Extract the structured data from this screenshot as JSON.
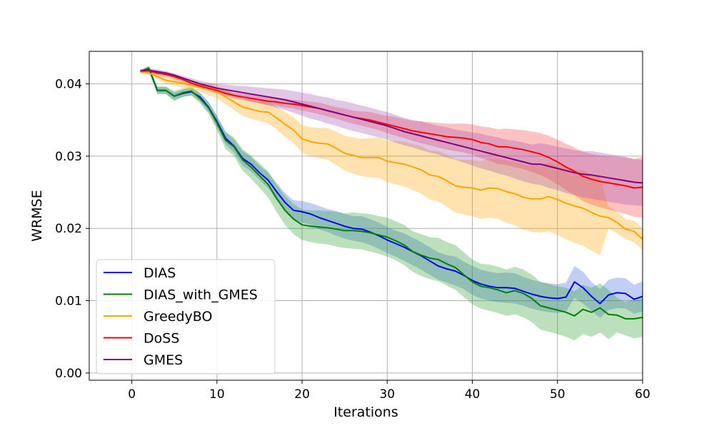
{
  "chart_data": {
    "type": "line",
    "title": "",
    "xlabel": "Iterations",
    "ylabel": "WRMSE",
    "xlim": [
      -5,
      60
    ],
    "ylim": [
      -0.001,
      0.0445
    ],
    "x_ticks": [
      0,
      10,
      20,
      30,
      40,
      50,
      60
    ],
    "x_tick_labels": [
      "0",
      "10",
      "20",
      "30",
      "40",
      "50",
      "60"
    ],
    "y_ticks": [
      0.0,
      0.01,
      0.02,
      0.03,
      0.04
    ],
    "y_tick_labels": [
      "0.00",
      "0.01",
      "0.02",
      "0.03",
      "0.04"
    ],
    "grid": true,
    "legend_position": "lower-left",
    "x": [
      1,
      2,
      3,
      4,
      5,
      6,
      7,
      8,
      9,
      10,
      11,
      12,
      13,
      14,
      15,
      16,
      17,
      18,
      19,
      20,
      21,
      22,
      23,
      24,
      25,
      26,
      27,
      28,
      29,
      30,
      31,
      32,
      33,
      34,
      35,
      36,
      37,
      38,
      39,
      40,
      41,
      42,
      43,
      44,
      45,
      46,
      47,
      48,
      49,
      50,
      51,
      52,
      53,
      54,
      55,
      56,
      57,
      58,
      59,
      60
    ],
    "series": [
      {
        "name": "DIAS",
        "color": "#0000ff",
        "band_color": "#4169e1",
        "values": [
          0.0417,
          0.0421,
          0.0391,
          0.0391,
          0.0383,
          0.0387,
          0.0389,
          0.0382,
          0.0368,
          0.0348,
          0.0325,
          0.0314,
          0.0297,
          0.0289,
          0.0277,
          0.0267,
          0.0251,
          0.0236,
          0.0225,
          0.0223,
          0.022,
          0.0215,
          0.0211,
          0.0207,
          0.0203,
          0.02,
          0.0199,
          0.0195,
          0.019,
          0.0184,
          0.0179,
          0.0174,
          0.0168,
          0.0162,
          0.0155,
          0.0148,
          0.0144,
          0.0141,
          0.0135,
          0.0128,
          0.0123,
          0.012,
          0.0118,
          0.0118,
          0.0117,
          0.0113,
          0.0109,
          0.0106,
          0.0104,
          0.0103,
          0.0105,
          0.0126,
          0.0118,
          0.0106,
          0.0096,
          0.0108,
          0.0111,
          0.011,
          0.0102,
          0.0106
        ],
        "lower": [
          0.0415,
          0.0418,
          0.0386,
          0.0386,
          0.0378,
          0.0382,
          0.0384,
          0.0376,
          0.0361,
          0.034,
          0.0316,
          0.0305,
          0.0287,
          0.0279,
          0.0267,
          0.0256,
          0.0239,
          0.0223,
          0.0211,
          0.0208,
          0.0205,
          0.0199,
          0.0195,
          0.019,
          0.0186,
          0.0183,
          0.0181,
          0.0177,
          0.0172,
          0.0166,
          0.0161,
          0.0155,
          0.0149,
          0.0143,
          0.0136,
          0.0129,
          0.0125,
          0.0121,
          0.0116,
          0.0108,
          0.0103,
          0.01,
          0.0098,
          0.0097,
          0.0096,
          0.0093,
          0.0089,
          0.0086,
          0.0084,
          0.0083,
          0.0085,
          0.0104,
          0.0096,
          0.0086,
          0.0076,
          0.0087,
          0.009,
          0.0089,
          0.0082,
          0.0085
        ],
        "upper": [
          0.0419,
          0.0424,
          0.0396,
          0.0396,
          0.0388,
          0.0392,
          0.0394,
          0.0388,
          0.0375,
          0.0356,
          0.0334,
          0.0323,
          0.0307,
          0.0299,
          0.0287,
          0.0278,
          0.0263,
          0.0249,
          0.0239,
          0.0238,
          0.0235,
          0.0231,
          0.0227,
          0.0224,
          0.022,
          0.0217,
          0.0217,
          0.0213,
          0.0208,
          0.0202,
          0.0197,
          0.0193,
          0.0187,
          0.0181,
          0.0174,
          0.0167,
          0.0163,
          0.0161,
          0.0154,
          0.0148,
          0.0143,
          0.014,
          0.0138,
          0.0139,
          0.0138,
          0.0133,
          0.0129,
          0.0126,
          0.0124,
          0.0123,
          0.0125,
          0.0148,
          0.014,
          0.0126,
          0.0116,
          0.0129,
          0.0132,
          0.0131,
          0.0122,
          0.0127
        ]
      },
      {
        "name": "DIAS_with_GMES",
        "color": "#008000",
        "band_color": "#2ca02c",
        "values": [
          0.0417,
          0.0422,
          0.0391,
          0.0391,
          0.0383,
          0.0388,
          0.039,
          0.038,
          0.0367,
          0.0346,
          0.0322,
          0.0313,
          0.0295,
          0.0285,
          0.0273,
          0.0261,
          0.0242,
          0.0225,
          0.0213,
          0.0205,
          0.0203,
          0.0202,
          0.0201,
          0.0199,
          0.0197,
          0.0197,
          0.0196,
          0.0194,
          0.0191,
          0.0188,
          0.0183,
          0.0177,
          0.0168,
          0.0163,
          0.0159,
          0.0157,
          0.0151,
          0.0146,
          0.0136,
          0.0126,
          0.012,
          0.0118,
          0.0115,
          0.0111,
          0.0114,
          0.011,
          0.0103,
          0.0093,
          0.009,
          0.0087,
          0.0084,
          0.0079,
          0.0088,
          0.0084,
          0.009,
          0.0081,
          0.008,
          0.0075,
          0.0075,
          0.0077
        ],
        "lower": [
          0.0415,
          0.0419,
          0.0386,
          0.0386,
          0.0376,
          0.0382,
          0.0384,
          0.0373,
          0.0359,
          0.0336,
          0.031,
          0.03,
          0.028,
          0.0269,
          0.0256,
          0.0243,
          0.0223,
          0.0205,
          0.0192,
          0.0184,
          0.0181,
          0.0179,
          0.0178,
          0.0175,
          0.0173,
          0.0172,
          0.0171,
          0.0168,
          0.0165,
          0.0161,
          0.0156,
          0.0149,
          0.014,
          0.0134,
          0.013,
          0.0127,
          0.0121,
          0.0115,
          0.0105,
          0.0095,
          0.0089,
          0.0086,
          0.0083,
          0.0079,
          0.0081,
          0.0077,
          0.007,
          0.006,
          0.0057,
          0.0054,
          0.005,
          0.0045,
          0.0054,
          0.005,
          0.0056,
          0.0047,
          0.0056,
          0.0052,
          0.0048,
          0.005
        ],
        "upper": [
          0.0419,
          0.0425,
          0.0396,
          0.0396,
          0.039,
          0.0394,
          0.0396,
          0.0387,
          0.0375,
          0.0356,
          0.0334,
          0.0326,
          0.031,
          0.0301,
          0.029,
          0.0279,
          0.0261,
          0.0245,
          0.0234,
          0.0226,
          0.0225,
          0.0225,
          0.0224,
          0.0223,
          0.0221,
          0.0222,
          0.0221,
          0.022,
          0.0217,
          0.0215,
          0.021,
          0.0205,
          0.0196,
          0.0192,
          0.0188,
          0.0187,
          0.0181,
          0.0177,
          0.0167,
          0.0157,
          0.0151,
          0.015,
          0.0147,
          0.0143,
          0.0147,
          0.0143,
          0.0136,
          0.0126,
          0.0123,
          0.012,
          0.0118,
          0.0113,
          0.0122,
          0.0118,
          0.0124,
          0.0115,
          0.0104,
          0.0098,
          0.0102,
          0.0104
        ]
      },
      {
        "name": "GreedyBO",
        "color": "#ffa500",
        "band_color": "#ffa500",
        "values": [
          0.0417,
          0.0415,
          0.041,
          0.0405,
          0.0403,
          0.0401,
          0.0398,
          0.0396,
          0.0393,
          0.0389,
          0.0382,
          0.0375,
          0.0368,
          0.0365,
          0.0362,
          0.0361,
          0.0353,
          0.0344,
          0.0336,
          0.0324,
          0.032,
          0.0318,
          0.0317,
          0.0311,
          0.0304,
          0.0301,
          0.0298,
          0.0298,
          0.0298,
          0.0293,
          0.0291,
          0.0289,
          0.0285,
          0.0281,
          0.0274,
          0.0272,
          0.0266,
          0.0259,
          0.0257,
          0.0256,
          0.0253,
          0.0256,
          0.0255,
          0.0251,
          0.0248,
          0.0243,
          0.0241,
          0.0241,
          0.0244,
          0.024,
          0.0235,
          0.0231,
          0.0228,
          0.0222,
          0.0217,
          0.0215,
          0.0208,
          0.0199,
          0.0196,
          0.0185
        ],
        "lower": [
          0.0414,
          0.0412,
          0.0406,
          0.04,
          0.0398,
          0.0395,
          0.0391,
          0.0389,
          0.0385,
          0.038,
          0.0372,
          0.0364,
          0.0356,
          0.0352,
          0.0348,
          0.0346,
          0.0337,
          0.0327,
          0.0318,
          0.0305,
          0.03,
          0.0297,
          0.0295,
          0.0288,
          0.028,
          0.0276,
          0.0272,
          0.0271,
          0.027,
          0.0264,
          0.0261,
          0.0258,
          0.0253,
          0.0248,
          0.024,
          0.0237,
          0.023,
          0.0222,
          0.0219,
          0.0217,
          0.0213,
          0.0215,
          0.0213,
          0.0208,
          0.0204,
          0.0198,
          0.0195,
          0.0194,
          0.0196,
          0.0191,
          0.0185,
          0.018,
          0.0176,
          0.0169,
          0.0163,
          0.02,
          0.0193,
          0.0185,
          0.0181,
          0.017
        ],
        "upper": [
          0.042,
          0.0418,
          0.0414,
          0.041,
          0.0408,
          0.0407,
          0.0405,
          0.0403,
          0.0401,
          0.0398,
          0.0392,
          0.0386,
          0.038,
          0.0378,
          0.0376,
          0.0376,
          0.0369,
          0.0361,
          0.0354,
          0.0343,
          0.034,
          0.0339,
          0.0339,
          0.0334,
          0.0328,
          0.0326,
          0.0324,
          0.0325,
          0.0326,
          0.0322,
          0.0321,
          0.032,
          0.0317,
          0.0314,
          0.0308,
          0.0307,
          0.0302,
          0.0296,
          0.0295,
          0.0295,
          0.0293,
          0.0297,
          0.0297,
          0.0294,
          0.0292,
          0.0288,
          0.0287,
          0.0288,
          0.0292,
          0.0289,
          0.0285,
          0.0282,
          0.028,
          0.0275,
          0.0271,
          0.023,
          0.0223,
          0.0213,
          0.0211,
          0.02
        ]
      },
      {
        "name": "DoSS",
        "color": "#ff0000",
        "band_color": "#ff4040",
        "values": [
          0.0418,
          0.0418,
          0.0415,
          0.0413,
          0.041,
          0.0406,
          0.0401,
          0.0397,
          0.0394,
          0.0391,
          0.0387,
          0.0384,
          0.0382,
          0.038,
          0.0378,
          0.0376,
          0.0375,
          0.0373,
          0.0372,
          0.037,
          0.0368,
          0.0366,
          0.0363,
          0.036,
          0.0357,
          0.0354,
          0.0352,
          0.035,
          0.0347,
          0.0344,
          0.0341,
          0.0338,
          0.0335,
          0.0333,
          0.0331,
          0.0329,
          0.0327,
          0.0326,
          0.0325,
          0.0323,
          0.0319,
          0.0317,
          0.0313,
          0.0313,
          0.0311,
          0.0309,
          0.0306,
          0.0303,
          0.0298,
          0.0292,
          0.0285,
          0.0279,
          0.0272,
          0.0268,
          0.0265,
          0.0263,
          0.0261,
          0.0259,
          0.0256,
          0.0257
        ],
        "lower": [
          0.0416,
          0.0416,
          0.0412,
          0.041,
          0.0407,
          0.0403,
          0.0398,
          0.0394,
          0.039,
          0.0387,
          0.0383,
          0.038,
          0.0378,
          0.0375,
          0.0373,
          0.0371,
          0.037,
          0.0367,
          0.0366,
          0.0363,
          0.0361,
          0.0358,
          0.0355,
          0.0352,
          0.0348,
          0.0345,
          0.0342,
          0.0339,
          0.0336,
          0.0332,
          0.0328,
          0.0325,
          0.0321,
          0.0318,
          0.0315,
          0.0312,
          0.0309,
          0.0307,
          0.0305,
          0.0302,
          0.0297,
          0.0294,
          0.0289,
          0.0288,
          0.0285,
          0.0282,
          0.0278,
          0.0274,
          0.0268,
          0.0261,
          0.0253,
          0.0246,
          0.0238,
          0.0233,
          0.0229,
          0.0226,
          0.0223,
          0.022,
          0.0216,
          0.0215
        ],
        "upper": [
          0.042,
          0.042,
          0.0418,
          0.0416,
          0.0413,
          0.0409,
          0.0404,
          0.04,
          0.0398,
          0.0395,
          0.0391,
          0.0388,
          0.0386,
          0.0385,
          0.0383,
          0.0381,
          0.038,
          0.0379,
          0.0378,
          0.0377,
          0.0375,
          0.0374,
          0.0371,
          0.0368,
          0.0366,
          0.0363,
          0.0362,
          0.0361,
          0.0358,
          0.0356,
          0.0354,
          0.0351,
          0.0349,
          0.0348,
          0.0347,
          0.0346,
          0.0345,
          0.0345,
          0.0345,
          0.0344,
          0.0341,
          0.034,
          0.0337,
          0.0338,
          0.0337,
          0.0336,
          0.0334,
          0.0332,
          0.0328,
          0.0323,
          0.0317,
          0.0312,
          0.0306,
          0.0303,
          0.0301,
          0.03,
          0.0299,
          0.0298,
          0.0296,
          0.0299
        ]
      },
      {
        "name": "GMES",
        "color": "#800080",
        "band_color": "#a050b0",
        "values": [
          0.0418,
          0.0419,
          0.0417,
          0.0415,
          0.0412,
          0.0408,
          0.0404,
          0.04,
          0.0397,
          0.0394,
          0.0392,
          0.039,
          0.0388,
          0.0386,
          0.0384,
          0.0382,
          0.038,
          0.0378,
          0.0375,
          0.0372,
          0.0369,
          0.0366,
          0.0363,
          0.036,
          0.0357,
          0.0354,
          0.0351,
          0.0348,
          0.0345,
          0.0342,
          0.0338,
          0.0334,
          0.0331,
          0.0328,
          0.0325,
          0.0322,
          0.0319,
          0.0316,
          0.0313,
          0.031,
          0.0307,
          0.0304,
          0.0301,
          0.0298,
          0.0295,
          0.0292,
          0.0289,
          0.0289,
          0.0286,
          0.0283,
          0.028,
          0.0277,
          0.0275,
          0.0274,
          0.0272,
          0.027,
          0.0268,
          0.0266,
          0.0264,
          0.0263
        ],
        "lower": [
          0.0416,
          0.0417,
          0.0414,
          0.0412,
          0.0409,
          0.0405,
          0.04,
          0.0396,
          0.0392,
          0.0388,
          0.0385,
          0.0382,
          0.0379,
          0.0376,
          0.0373,
          0.037,
          0.0367,
          0.0364,
          0.036,
          0.0356,
          0.0352,
          0.0349,
          0.0345,
          0.0342,
          0.0338,
          0.0335,
          0.0332,
          0.0329,
          0.0326,
          0.0323,
          0.0319,
          0.0315,
          0.0312,
          0.0308,
          0.0305,
          0.0302,
          0.0298,
          0.0295,
          0.0291,
          0.0287,
          0.0283,
          0.028,
          0.0276,
          0.0273,
          0.0269,
          0.0265,
          0.0262,
          0.026,
          0.0256,
          0.0253,
          0.0249,
          0.0246,
          0.0243,
          0.0241,
          0.0239,
          0.0237,
          0.0235,
          0.0233,
          0.0232,
          0.0231
        ],
        "upper": [
          0.042,
          0.0421,
          0.042,
          0.0418,
          0.0415,
          0.0411,
          0.0408,
          0.0404,
          0.0402,
          0.04,
          0.0399,
          0.0398,
          0.0397,
          0.0396,
          0.0395,
          0.0394,
          0.0393,
          0.0392,
          0.039,
          0.0388,
          0.0386,
          0.0383,
          0.0381,
          0.0378,
          0.0376,
          0.0373,
          0.037,
          0.0367,
          0.0364,
          0.0361,
          0.0357,
          0.0353,
          0.035,
          0.0348,
          0.0345,
          0.0342,
          0.034,
          0.0337,
          0.0335,
          0.0333,
          0.0331,
          0.0328,
          0.0326,
          0.0323,
          0.0321,
          0.0319,
          0.0316,
          0.0318,
          0.0316,
          0.0313,
          0.0311,
          0.0308,
          0.0307,
          0.0307,
          0.0305,
          0.0303,
          0.0301,
          0.0299,
          0.0296,
          0.0295
        ]
      }
    ]
  }
}
